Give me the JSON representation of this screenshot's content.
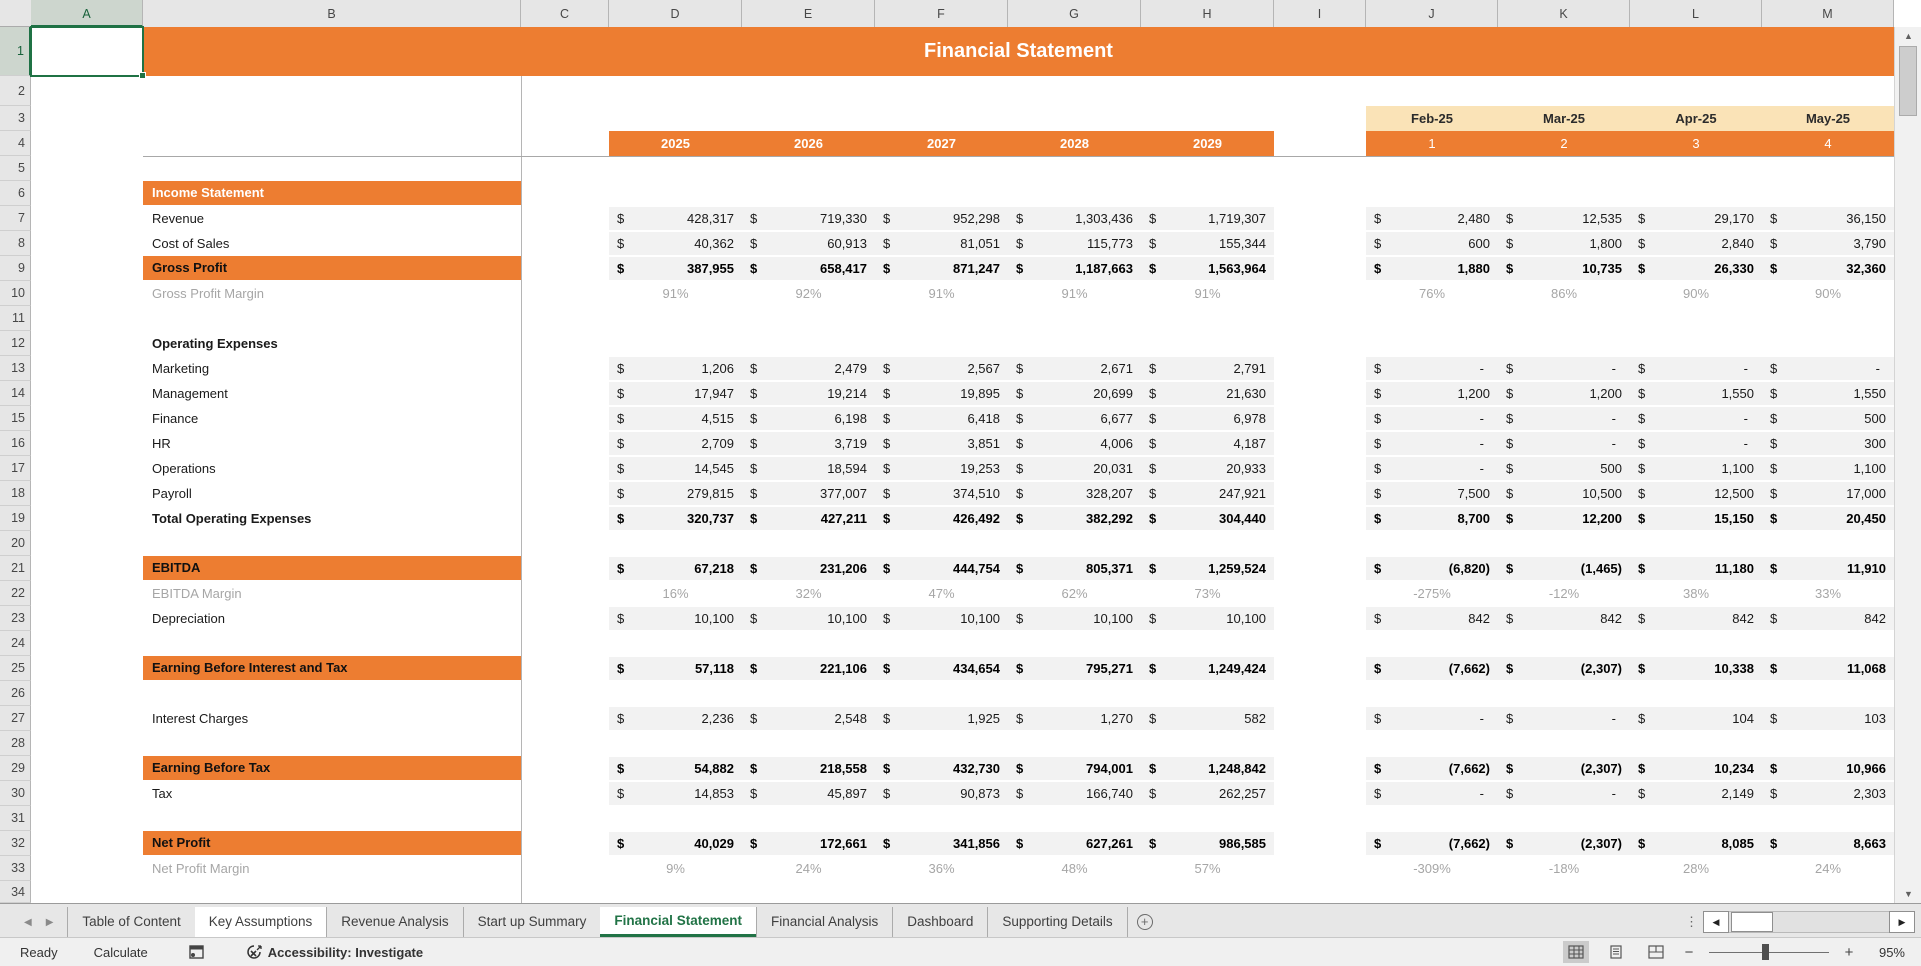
{
  "title": "Financial Statement",
  "column_letters": [
    "A",
    "B",
    "C",
    "D",
    "E",
    "F",
    "G",
    "H",
    "I",
    "J",
    "K",
    "L",
    "M"
  ],
  "grid": {
    "visible_rows": 34,
    "selected_cell": "A1"
  },
  "year_headers": [
    "2025",
    "2026",
    "2027",
    "2028",
    "2029"
  ],
  "month_headers": [
    "Feb-25",
    "Mar-25",
    "Apr-25",
    "May-25"
  ],
  "month_numbers": [
    "1",
    "2",
    "3",
    "4"
  ],
  "income_statement": {
    "rows": [
      {
        "row": 6,
        "label": "Income Statement",
        "type": "section"
      },
      {
        "row": 7,
        "label": "Revenue",
        "type": "currency",
        "annual": [
          "428,317",
          "719,330",
          "952,298",
          "1,303,436",
          "1,719,307"
        ],
        "monthly": [
          "2,480",
          "12,535",
          "29,170",
          "36,150"
        ]
      },
      {
        "row": 8,
        "label": "Cost of Sales",
        "type": "currency",
        "annual": [
          "40,362",
          "60,913",
          "81,051",
          "115,773",
          "155,344"
        ],
        "monthly": [
          "600",
          "1,800",
          "2,840",
          "3,790"
        ]
      },
      {
        "row": 9,
        "label": "Gross Profit",
        "type": "total",
        "annual": [
          "387,955",
          "658,417",
          "871,247",
          "1,187,663",
          "1,563,964"
        ],
        "monthly": [
          "1,880",
          "10,735",
          "26,330",
          "32,360"
        ]
      },
      {
        "row": 10,
        "label": "Gross Profit Margin",
        "type": "percent",
        "annual": [
          "91%",
          "92%",
          "91%",
          "91%",
          "91%"
        ],
        "monthly": [
          "76%",
          "86%",
          "90%",
          "90%"
        ]
      },
      {
        "row": 12,
        "label": "Operating Expenses",
        "type": "group"
      },
      {
        "row": 13,
        "label": "Marketing",
        "type": "currency",
        "annual": [
          "1,206",
          "2,479",
          "2,567",
          "2,671",
          "2,791"
        ],
        "monthly": [
          "-",
          "-",
          "-",
          "-"
        ]
      },
      {
        "row": 14,
        "label": "Management",
        "type": "currency",
        "annual": [
          "17,947",
          "19,214",
          "19,895",
          "20,699",
          "21,630"
        ],
        "monthly": [
          "1,200",
          "1,200",
          "1,550",
          "1,550"
        ]
      },
      {
        "row": 15,
        "label": "Finance",
        "type": "currency",
        "annual": [
          "4,515",
          "6,198",
          "6,418",
          "6,677",
          "6,978"
        ],
        "monthly": [
          "-",
          "-",
          "-",
          "500"
        ]
      },
      {
        "row": 16,
        "label": "HR",
        "type": "currency",
        "annual": [
          "2,709",
          "3,719",
          "3,851",
          "4,006",
          "4,187"
        ],
        "monthly": [
          "-",
          "-",
          "-",
          "300"
        ]
      },
      {
        "row": 17,
        "label": "Operations",
        "type": "currency",
        "annual": [
          "14,545",
          "18,594",
          "19,253",
          "20,031",
          "20,933"
        ],
        "monthly": [
          "-",
          "500",
          "1,100",
          "1,100"
        ]
      },
      {
        "row": 18,
        "label": "Payroll",
        "type": "currency",
        "annual": [
          "279,815",
          "377,007",
          "374,510",
          "328,207",
          "247,921"
        ],
        "monthly": [
          "7,500",
          "10,500",
          "12,500",
          "17,000"
        ]
      },
      {
        "row": 19,
        "label": "Total Operating Expenses",
        "type": "total-plain",
        "annual": [
          "320,737",
          "427,211",
          "426,492",
          "382,292",
          "304,440"
        ],
        "monthly": [
          "8,700",
          "12,200",
          "15,150",
          "20,450"
        ]
      },
      {
        "row": 21,
        "label": "EBITDA",
        "type": "total",
        "annual": [
          "67,218",
          "231,206",
          "444,754",
          "805,371",
          "1,259,524"
        ],
        "monthly": [
          "(6,820)",
          "(1,465)",
          "11,180",
          "11,910"
        ]
      },
      {
        "row": 22,
        "label": "EBITDA Margin",
        "type": "percent",
        "annual": [
          "16%",
          "32%",
          "47%",
          "62%",
          "73%"
        ],
        "monthly": [
          "-275%",
          "-12%",
          "38%",
          "33%"
        ]
      },
      {
        "row": 23,
        "label": "Depreciation",
        "type": "currency",
        "annual": [
          "10,100",
          "10,100",
          "10,100",
          "10,100",
          "10,100"
        ],
        "monthly": [
          "842",
          "842",
          "842",
          "842"
        ]
      },
      {
        "row": 25,
        "label": "Earning Before Interest and Tax",
        "type": "total",
        "annual": [
          "57,118",
          "221,106",
          "434,654",
          "795,271",
          "1,249,424"
        ],
        "monthly": [
          "(7,662)",
          "(2,307)",
          "10,338",
          "11,068"
        ]
      },
      {
        "row": 27,
        "label": "Interest Charges",
        "type": "currency",
        "annual": [
          "2,236",
          "2,548",
          "1,925",
          "1,270",
          "582"
        ],
        "monthly": [
          "-",
          "-",
          "104",
          "103"
        ]
      },
      {
        "row": 29,
        "label": "Earning Before Tax",
        "type": "total",
        "annual": [
          "54,882",
          "218,558",
          "432,730",
          "794,001",
          "1,248,842"
        ],
        "monthly": [
          "(7,662)",
          "(2,307)",
          "10,234",
          "10,966"
        ]
      },
      {
        "row": 30,
        "label": "Tax",
        "type": "currency",
        "annual": [
          "14,853",
          "45,897",
          "90,873",
          "166,740",
          "262,257"
        ],
        "monthly": [
          "-",
          "-",
          "2,149",
          "2,303"
        ]
      },
      {
        "row": 32,
        "label": "Net Profit",
        "type": "total",
        "annual": [
          "40,029",
          "172,661",
          "341,856",
          "627,261",
          "986,585"
        ],
        "monthly": [
          "(7,662)",
          "(2,307)",
          "8,085",
          "8,663"
        ]
      },
      {
        "row": 33,
        "label": "Net Profit Margin",
        "type": "percent",
        "annual": [
          "9%",
          "24%",
          "36%",
          "48%",
          "57%"
        ],
        "monthly": [
          "-309%",
          "-18%",
          "28%",
          "24%"
        ]
      }
    ],
    "currency_symbol": "$"
  },
  "sheet_tabs": {
    "items": [
      {
        "label": "Table of Content",
        "state": "normal"
      },
      {
        "label": "Key Assumptions",
        "state": "white"
      },
      {
        "label": "Revenue Analysis",
        "state": "normal"
      },
      {
        "label": "Start up Summary",
        "state": "normal"
      },
      {
        "label": "Financial Statement",
        "state": "active"
      },
      {
        "label": "Financial Analysis",
        "state": "normal"
      },
      {
        "label": "Dashboard",
        "state": "normal"
      },
      {
        "label": "Supporting Details",
        "state": "normal"
      }
    ],
    "add_button": "+"
  },
  "status_bar": {
    "ready": "Ready",
    "calculate": "Calculate",
    "accessibility": "Accessibility: Investigate",
    "zoom": "95%",
    "zoom_minus": "−",
    "zoom_plus": "+"
  },
  "colors": {
    "accent_orange": "#ED7D31",
    "cream": "#FAE3B7",
    "value_cell_bg": "#F2F2F2",
    "margin_text_gray": "#A6A6A6",
    "active_tab_green": "#217346",
    "selection_green": "#1F7244"
  }
}
